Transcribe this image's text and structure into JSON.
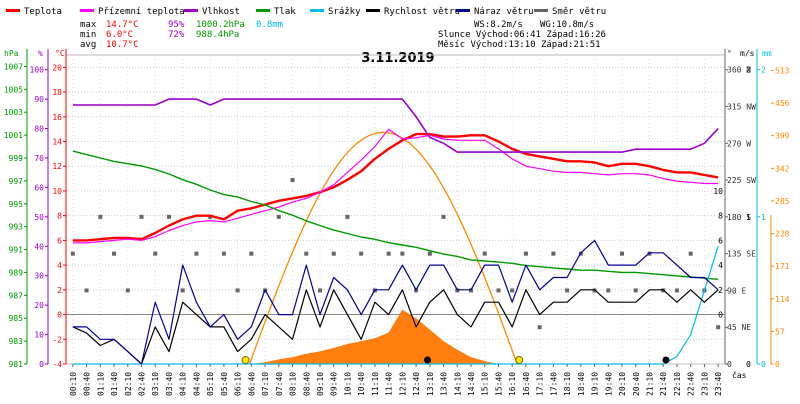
{
  "legend": [
    {
      "label": "Teplota",
      "color": "#ff0000"
    },
    {
      "label": "Přízemní teplota",
      "color": "#ff00ff"
    },
    {
      "label": "Vlhkost",
      "color": "#9900cc"
    },
    {
      "label": "Tlak",
      "color": "#009900"
    },
    {
      "label": "Srážky",
      "color": "#00bbee"
    },
    {
      "label": "Rychlost větru",
      "color": "#000000"
    },
    {
      "label": "Náraz větru",
      "color": "#000099"
    },
    {
      "label": "Směr větru",
      "color": "#666666"
    }
  ],
  "stats": {
    "max": {
      "label": "max",
      "temp": "14.7°C",
      "hum": "95%",
      "press": "1000.2hPa",
      "rain": "0.8mm"
    },
    "min": {
      "label": "min",
      "temp": "6.0°C",
      "hum": "72%",
      "press": "988.4hPa"
    },
    "avg": {
      "label": "avg",
      "temp": "10.7°C"
    },
    "ws": "WS:8.2m/s",
    "wg": "WG:10.8m/s",
    "sun": "Slunce Východ:06:41  Západ:16:26",
    "moon": "Měsíc  Východ:13:10  Západ:21:51"
  },
  "chart_data": {
    "type": "line",
    "title": "3.11.2019",
    "xlabel": "čas",
    "x": [
      "00:10",
      "00:40",
      "01:10",
      "01:40",
      "02:10",
      "02:40",
      "03:10",
      "03:40",
      "04:10",
      "04:40",
      "05:10",
      "05:40",
      "06:10",
      "06:40",
      "07:10",
      "07:40",
      "08:10",
      "08:40",
      "09:10",
      "09:40",
      "10:10",
      "10:40",
      "11:10",
      "11:40",
      "12:10",
      "12:40",
      "13:10",
      "13:40",
      "14:10",
      "14:40",
      "15:10",
      "15:40",
      "16:10",
      "16:40",
      "17:10",
      "17:40",
      "18:10",
      "18:40",
      "19:10",
      "19:40",
      "20:10",
      "20:40",
      "21:10",
      "21:40",
      "22:10",
      "22:40",
      "23:10",
      "23:40"
    ],
    "axes": {
      "hpa": {
        "unit": "hPa",
        "ticks": [
          981,
          983,
          985,
          987,
          989,
          991,
          993,
          995,
          997,
          999,
          1001,
          1003,
          1005,
          1007
        ],
        "range": [
          981,
          1008
        ]
      },
      "percent": {
        "unit": "%",
        "ticks": [
          0,
          10,
          20,
          30,
          40,
          50,
          60,
          70,
          80,
          90,
          100
        ],
        "range": [
          0,
          105
        ]
      },
      "celsius": {
        "unit": "°C",
        "ticks": [
          -4,
          -2,
          0,
          2,
          4,
          6,
          8,
          10,
          12,
          14,
          16,
          18,
          20
        ],
        "range": [
          -4,
          21
        ]
      },
      "direction": {
        "unit": "°",
        "ticks": [
          {
            "v": 0,
            "t": "0"
          },
          {
            "v": 45,
            "t": "45 NE"
          },
          {
            "v": 90,
            "t": "90 E"
          },
          {
            "v": 135,
            "t": "135 SE"
          },
          {
            "v": 180,
            "t": "180 S"
          },
          {
            "v": 225,
            "t": "225 SW"
          },
          {
            "v": 270,
            "t": "270 W"
          },
          {
            "v": 315,
            "t": "315 NW"
          },
          {
            "v": 360,
            "t": "360 N"
          }
        ],
        "range": [
          0,
          378
        ]
      },
      "wind": {
        "unit": "m/s",
        "ticks": [
          {
            "v": 0,
            "t": "0"
          },
          {
            "v": 2,
            "t": "2"
          },
          {
            "v": 4,
            "t": "4"
          },
          {
            "v": 6,
            "t": "6"
          },
          {
            "v": 8,
            "t": "8"
          },
          {
            "v": 10,
            "t": "10"
          }
        ],
        "right_ticks": [
          {
            "v": 0,
            "t": "0"
          },
          {
            "v": 1,
            "t": "1"
          },
          {
            "v": 2,
            "t": "2"
          }
        ],
        "range": [
          -4,
          21
        ]
      },
      "rain": {
        "unit": "mm",
        "ticks": [
          0,
          1,
          2
        ],
        "range": [
          0,
          2.1
        ]
      },
      "solar": {
        "unit": "",
        "ticks": [
          0,
          57,
          114,
          171,
          228,
          285,
          342,
          399,
          456,
          513
        ],
        "range": [
          0,
          540
        ]
      }
    },
    "series": [
      {
        "name": "Teplota",
        "color": "#ff0000",
        "axis": "celsius",
        "values": [
          6.0,
          6.0,
          6.1,
          6.2,
          6.2,
          6.1,
          6.6,
          7.2,
          7.7,
          8.0,
          8.0,
          7.7,
          8.4,
          8.6,
          8.9,
          9.2,
          9.4,
          9.6,
          9.9,
          10.3,
          10.9,
          11.6,
          12.6,
          13.4,
          14.1,
          14.6,
          14.6,
          14.4,
          14.4,
          14.5,
          14.5,
          14.0,
          13.4,
          13.0,
          12.8,
          12.6,
          12.4,
          12.4,
          12.3,
          12.0,
          12.2,
          12.2,
          12.0,
          11.7,
          11.5,
          11.5,
          11.3,
          11.1
        ]
      },
      {
        "name": "Přízemní teplota",
        "color": "#ff00ff",
        "axis": "celsius",
        "values": [
          5.8,
          5.8,
          5.9,
          6.0,
          6.1,
          6.0,
          6.3,
          6.8,
          7.2,
          7.5,
          7.6,
          7.5,
          7.8,
          8.1,
          8.4,
          8.7,
          9.1,
          9.4,
          9.9,
          10.5,
          11.5,
          12.5,
          13.6,
          15.0,
          14.2,
          14.3,
          14.5,
          14.2,
          14.1,
          14.1,
          14.1,
          13.4,
          12.6,
          12.0,
          11.8,
          11.6,
          11.5,
          11.5,
          11.4,
          11.3,
          11.4,
          11.4,
          11.3,
          11.0,
          10.8,
          10.7,
          10.6,
          10.6
        ]
      },
      {
        "name": "Vlhkost",
        "color": "#9900cc",
        "axis": "percent",
        "values": [
          88,
          88,
          88,
          88,
          88,
          88,
          88,
          90,
          90,
          90,
          88,
          90,
          90,
          90,
          90,
          90,
          90,
          90,
          90,
          90,
          90,
          90,
          90,
          90,
          90,
          84,
          77,
          75,
          72,
          72,
          72,
          72,
          72,
          72,
          72,
          72,
          72,
          72,
          72,
          72,
          72,
          73,
          73,
          73,
          73,
          73,
          75,
          80
        ]
      },
      {
        "name": "Tlak",
        "color": "#009900",
        "axis": "hpa",
        "values": [
          999.6,
          999.3,
          999.0,
          998.7,
          998.5,
          998.3,
          998.0,
          997.6,
          997.1,
          996.7,
          996.2,
          995.8,
          995.6,
          995.2,
          994.9,
          994.4,
          994.0,
          993.5,
          993.1,
          992.7,
          992.4,
          992.1,
          991.9,
          991.6,
          991.4,
          991.2,
          990.9,
          990.6,
          990.4,
          990.1,
          990.0,
          989.9,
          989.8,
          989.6,
          989.5,
          989.4,
          989.3,
          989.2,
          989.2,
          989.1,
          989.0,
          989.0,
          988.9,
          988.8,
          988.7,
          988.6,
          988.5,
          988.4
        ]
      },
      {
        "name": "Srážky",
        "color": "#00bbee",
        "axis": "rain",
        "values": [
          0,
          0,
          0,
          0,
          0,
          0,
          0,
          0,
          0,
          0,
          0,
          0,
          0,
          0,
          0,
          0,
          0,
          0,
          0,
          0,
          0,
          0,
          0,
          0,
          0,
          0,
          0,
          0,
          0,
          0,
          0,
          0,
          0,
          0,
          0,
          0,
          0,
          0,
          0,
          0,
          0,
          0,
          0,
          0,
          0.05,
          0.2,
          0.5,
          0.8
        ]
      },
      {
        "name": "Rychlost větru",
        "color": "#000000",
        "axis": "wind",
        "values": [
          -1,
          -1.5,
          -2.5,
          -2,
          -3,
          -4,
          -1,
          -3,
          1,
          0,
          -1,
          -1,
          -3,
          -2,
          0,
          -1,
          -2,
          2,
          -1,
          2,
          0,
          -2,
          1,
          0,
          2,
          -1,
          1,
          2,
          0,
          -1,
          1,
          1,
          -1,
          2,
          0,
          1,
          1,
          2,
          2,
          1,
          1,
          1,
          2,
          2,
          1,
          2,
          1,
          2
        ]
      },
      {
        "name": "Náraz větru",
        "color": "#000099",
        "axis": "wind",
        "values": [
          -1,
          -1,
          -2,
          -2,
          -3,
          -4,
          1,
          -2,
          4,
          1,
          -1,
          0,
          -2,
          -1,
          2,
          0,
          0,
          4,
          0,
          3,
          2,
          0,
          2,
          2,
          4,
          2,
          4,
          4,
          2,
          2,
          4,
          4,
          1,
          4,
          2,
          3,
          3,
          5,
          6,
          4,
          4,
          4,
          5,
          5,
          4,
          3,
          3,
          2
        ]
      },
      {
        "name": "Směr větru",
        "color": "#666666",
        "axis": "direction",
        "values": [
          135,
          90,
          180,
          135,
          90,
          180,
          135,
          180,
          90,
          135,
          180,
          135,
          90,
          135,
          90,
          180,
          225,
          135,
          90,
          135,
          180,
          135,
          90,
          135,
          135,
          90,
          135,
          180,
          90,
          90,
          135,
          90,
          90,
          135,
          45,
          135,
          90,
          135,
          90,
          90,
          135,
          90,
          135,
          90,
          90,
          135,
          90,
          45
        ]
      }
    ],
    "solar_radiation": {
      "color": "#ff7700",
      "axis": "solar",
      "values": [
        0,
        0,
        0,
        0,
        0,
        0,
        0,
        0,
        0,
        0,
        0,
        0,
        0,
        0,
        3,
        8,
        12,
        18,
        22,
        28,
        35,
        40,
        45,
        55,
        95,
        80,
        60,
        40,
        25,
        12,
        5,
        0,
        0,
        0,
        0,
        0,
        0,
        0,
        0,
        0,
        0,
        0,
        0,
        0,
        0,
        0,
        0,
        0
      ]
    },
    "solar_curve": {
      "color": "#ff8800",
      "axis": "solar",
      "peak": 405
    }
  }
}
